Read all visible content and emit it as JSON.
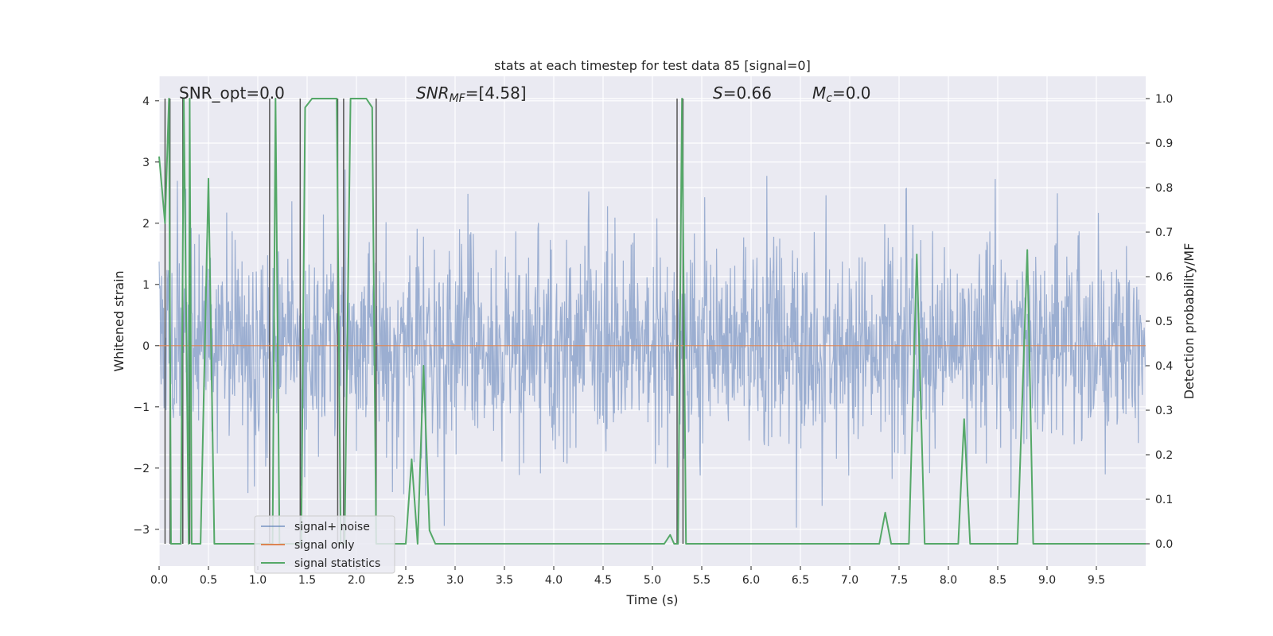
{
  "chart_data": {
    "type": "line",
    "title": "stats at each timestep for test data 85 [signal=0]",
    "xlabel": "Time (s)",
    "ylabel": "Whitened strain",
    "y2label": "Detection probability/MF",
    "xlim": [
      0,
      10
    ],
    "ylim": [
      -3.6,
      4.4
    ],
    "y2lim": [
      -0.05,
      1.05
    ],
    "x_ticks": [
      0.0,
      0.5,
      1.0,
      1.5,
      2.0,
      2.5,
      3.0,
      3.5,
      4.0,
      4.5,
      5.0,
      5.5,
      6.0,
      6.5,
      7.0,
      7.5,
      8.0,
      8.5,
      9.0,
      9.5
    ],
    "x_tick_labels": [
      "0.0",
      "0.5",
      "1.0",
      "1.5",
      "2.0",
      "2.5",
      "3.0",
      "3.5",
      "4.0",
      "4.5",
      "5.0",
      "5.5",
      "6.0",
      "6.5",
      "7.0",
      "7.5",
      "8.0",
      "8.5",
      "9.0",
      "9.5"
    ],
    "y_ticks": [
      -3,
      -2,
      -1,
      0,
      1,
      2,
      3,
      4
    ],
    "y_tick_labels": [
      "−3",
      "−2",
      "−1",
      "0",
      "1",
      "2",
      "3",
      "4"
    ],
    "y2_ticks": [
      0.0,
      0.1,
      0.2,
      0.3,
      0.4,
      0.5,
      0.6,
      0.7,
      0.8,
      0.9,
      1.0
    ],
    "y2_tick_labels": [
      "0.0",
      "0.1",
      "0.2",
      "0.3",
      "0.4",
      "0.5",
      "0.6",
      "0.7",
      "0.8",
      "0.9",
      "1.0"
    ],
    "grid": true,
    "legend_position": "bottom-left",
    "annotations": {
      "snr_opt": "SNR_opt=0.0",
      "snr_mf_base": "SNR",
      "snr_mf_sub": "MF",
      "snr_mf_value": "=[4.58]",
      "s_label": "S",
      "s_value": "=0.66",
      "mc_base": "M",
      "mc_sub": "c",
      "mc_value": "=0.0"
    },
    "series": [
      {
        "name": "signal+ noise",
        "color": "#4c72b0",
        "kind": "noise",
        "sample_rate_hz": 200,
        "rms": 0.85,
        "seed": 85
      },
      {
        "name": "signal only",
        "color": "#dd8452",
        "kind": "flat",
        "x": [
          0,
          10
        ],
        "y": [
          0,
          0
        ]
      },
      {
        "name": "signal statistics",
        "color": "#55a868",
        "axis": "right",
        "x": [
          0.0,
          0.06,
          0.1,
          0.12,
          0.18,
          0.22,
          0.25,
          0.3,
          0.31,
          0.33,
          0.37,
          0.42,
          0.5,
          0.56,
          0.6,
          1.1,
          1.13,
          1.15,
          1.18,
          1.22,
          1.26,
          1.3,
          1.44,
          1.48,
          1.55,
          1.8,
          1.84,
          1.88,
          1.94,
          2.1,
          2.16,
          2.2,
          2.25,
          2.3,
          2.5,
          2.56,
          2.62,
          2.68,
          2.74,
          2.8,
          5.12,
          5.18,
          5.22,
          5.26,
          5.3,
          5.34,
          5.38,
          5.42,
          7.3,
          7.36,
          7.42,
          7.6,
          7.68,
          7.76,
          8.1,
          8.16,
          8.22,
          8.7,
          8.8,
          8.86,
          10.0
        ],
        "y": [
          0.87,
          0.72,
          1.0,
          0.0,
          0.0,
          0.0,
          1.0,
          0.0,
          1.0,
          0.0,
          0.0,
          0.0,
          0.82,
          0.0,
          0.0,
          0.0,
          0.0,
          0.0,
          1.0,
          0.0,
          0.0,
          0.0,
          0.0,
          0.98,
          1.0,
          1.0,
          0.0,
          0.0,
          1.0,
          1.0,
          0.98,
          0.0,
          0.0,
          0.0,
          0.0,
          0.19,
          0.0,
          0.4,
          0.03,
          0.0,
          0.0,
          0.02,
          0.0,
          0.0,
          1.0,
          0.0,
          0.0,
          0.0,
          0.0,
          0.07,
          0.0,
          0.0,
          0.65,
          0.0,
          0.0,
          0.28,
          0.0,
          0.0,
          0.66,
          0.0,
          0.0
        ]
      }
    ],
    "vertical_markers": [
      0.06,
      0.11,
      0.24,
      0.31,
      1.12,
      1.43,
      1.81,
      1.87,
      2.2,
      5.25,
      5.31
    ]
  }
}
